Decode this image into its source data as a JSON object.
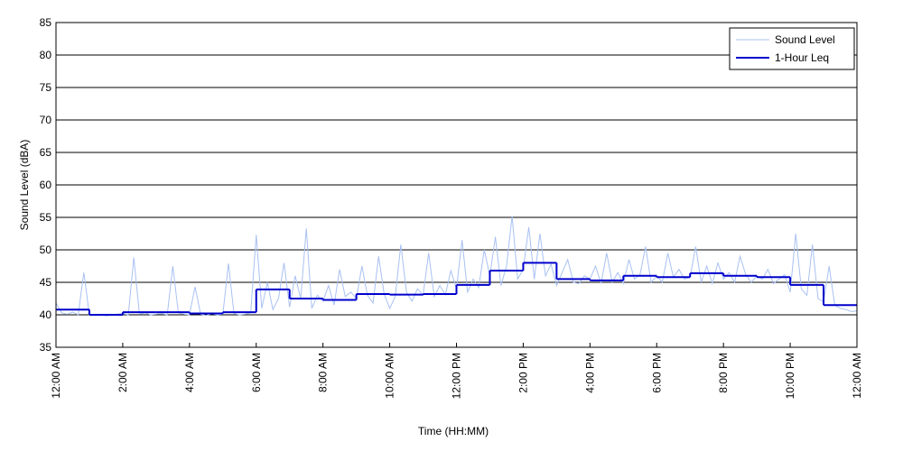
{
  "chart_data": {
    "type": "line",
    "xlabel": "Time (HH:MM)",
    "ylabel": "Sound Level (dBA)",
    "xlim": [
      0,
      1440
    ],
    "xticks": [
      {
        "value": 0,
        "label": "12:00 AM"
      },
      {
        "value": 120,
        "label": "2:00 AM"
      },
      {
        "value": 240,
        "label": "4:00 AM"
      },
      {
        "value": 360,
        "label": "6:00 AM"
      },
      {
        "value": 480,
        "label": "8:00 AM"
      },
      {
        "value": 600,
        "label": "10:00 AM"
      },
      {
        "value": 720,
        "label": "12:00 PM"
      },
      {
        "value": 840,
        "label": "2:00 PM"
      },
      {
        "value": 960,
        "label": "4:00 PM"
      },
      {
        "value": 1080,
        "label": "6:00 PM"
      },
      {
        "value": 1200,
        "label": "8:00 PM"
      },
      {
        "value": 1320,
        "label": "10:00 PM"
      },
      {
        "value": 1440,
        "label": "12:00 AM"
      }
    ],
    "ylim": [
      35,
      85
    ],
    "yticks": [
      35,
      40,
      45,
      50,
      55,
      60,
      65,
      70,
      75,
      80,
      85
    ],
    "grid": true,
    "legend": "upper-right",
    "series": [
      {
        "name": "Sound Level",
        "color": "#a9c1f2",
        "x": [
          0,
          10,
          20,
          30,
          40,
          50,
          60,
          70,
          80,
          90,
          100,
          110,
          120,
          130,
          140,
          150,
          160,
          170,
          180,
          190,
          200,
          210,
          220,
          230,
          240,
          250,
          260,
          270,
          280,
          290,
          300,
          310,
          320,
          330,
          340,
          350,
          360,
          370,
          380,
          390,
          400,
          410,
          420,
          430,
          440,
          450,
          460,
          470,
          480,
          490,
          500,
          510,
          520,
          530,
          540,
          550,
          560,
          570,
          580,
          590,
          600,
          610,
          620,
          630,
          640,
          650,
          660,
          670,
          680,
          690,
          700,
          710,
          720,
          730,
          740,
          750,
          760,
          770,
          780,
          790,
          800,
          810,
          820,
          830,
          840,
          850,
          860,
          870,
          880,
          890,
          900,
          910,
          920,
          930,
          940,
          950,
          960,
          970,
          980,
          990,
          1000,
          1010,
          1020,
          1030,
          1040,
          1050,
          1060,
          1070,
          1080,
          1090,
          1100,
          1110,
          1120,
          1130,
          1140,
          1150,
          1160,
          1170,
          1180,
          1190,
          1200,
          1210,
          1220,
          1230,
          1240,
          1250,
          1260,
          1270,
          1280,
          1290,
          1300,
          1310,
          1320,
          1330,
          1340,
          1350,
          1360,
          1370,
          1380,
          1390,
          1400,
          1410,
          1420,
          1430,
          1440
        ],
        "values": [
          41.8,
          40.3,
          40.1,
          40.4,
          40.0,
          46.5,
          40.0,
          39.9,
          40.1,
          39.8,
          40.0,
          40.1,
          40.2,
          40.0,
          48.8,
          40.1,
          40.3,
          40.0,
          40.1,
          40.2,
          40.0,
          47.5,
          40.3,
          40.1,
          40.0,
          44.3,
          40.1,
          39.9,
          40.2,
          40.0,
          40.1,
          47.9,
          40.2,
          40.0,
          40.1,
          40.3,
          52.3,
          41.0,
          45.0,
          40.8,
          42.5,
          48.0,
          41.2,
          46.0,
          42.5,
          53.3,
          41.0,
          43.0,
          42.1,
          44.5,
          41.5,
          47.0,
          42.8,
          43.5,
          42.5,
          47.5,
          43.0,
          41.8,
          49.0,
          43.2,
          41.0,
          42.8,
          50.8,
          43.5,
          42.1,
          44.0,
          43.0,
          49.5,
          42.8,
          44.5,
          43.1,
          46.8,
          44.0,
          51.5,
          43.5,
          45.5,
          44.2,
          50.0,
          46.0,
          52.0,
          44.5,
          47.5,
          55.2,
          45.5,
          47.0,
          53.5,
          45.5,
          52.5,
          46.0,
          47.8,
          44.5,
          46.5,
          48.5,
          45.0,
          44.8,
          46.0,
          45.5,
          47.5,
          44.8,
          49.5,
          45.0,
          46.5,
          44.8,
          48.5,
          45.5,
          46.2,
          50.5,
          45.0,
          46.0,
          45.0,
          49.5,
          45.8,
          47.0,
          45.5,
          45.8,
          50.5,
          45.0,
          47.5,
          44.8,
          48.0,
          45.5,
          46.5,
          45.0,
          49.0,
          46.2,
          45.0,
          46.0,
          45.5,
          47.0,
          44.8,
          45.5,
          46.2,
          43.5,
          52.5,
          44.0,
          43.0,
          50.8,
          42.5,
          42.0,
          47.5,
          41.5,
          41.0,
          40.8,
          40.5,
          40.6
        ]
      },
      {
        "name": "1-Hour Leq",
        "color": "#0000cc",
        "step": true,
        "x": [
          0,
          60,
          120,
          180,
          240,
          300,
          360,
          420,
          480,
          540,
          600,
          660,
          720,
          780,
          840,
          900,
          960,
          1020,
          1080,
          1140,
          1200,
          1260,
          1320,
          1380
        ],
        "values": [
          40.8,
          40.0,
          40.4,
          40.4,
          40.2,
          40.4,
          43.9,
          42.5,
          42.3,
          43.2,
          43.1,
          43.2,
          44.6,
          46.8,
          48.0,
          45.5,
          45.3,
          46.0,
          45.8,
          46.4,
          46.0,
          45.8,
          44.6,
          41.5
        ]
      }
    ]
  }
}
